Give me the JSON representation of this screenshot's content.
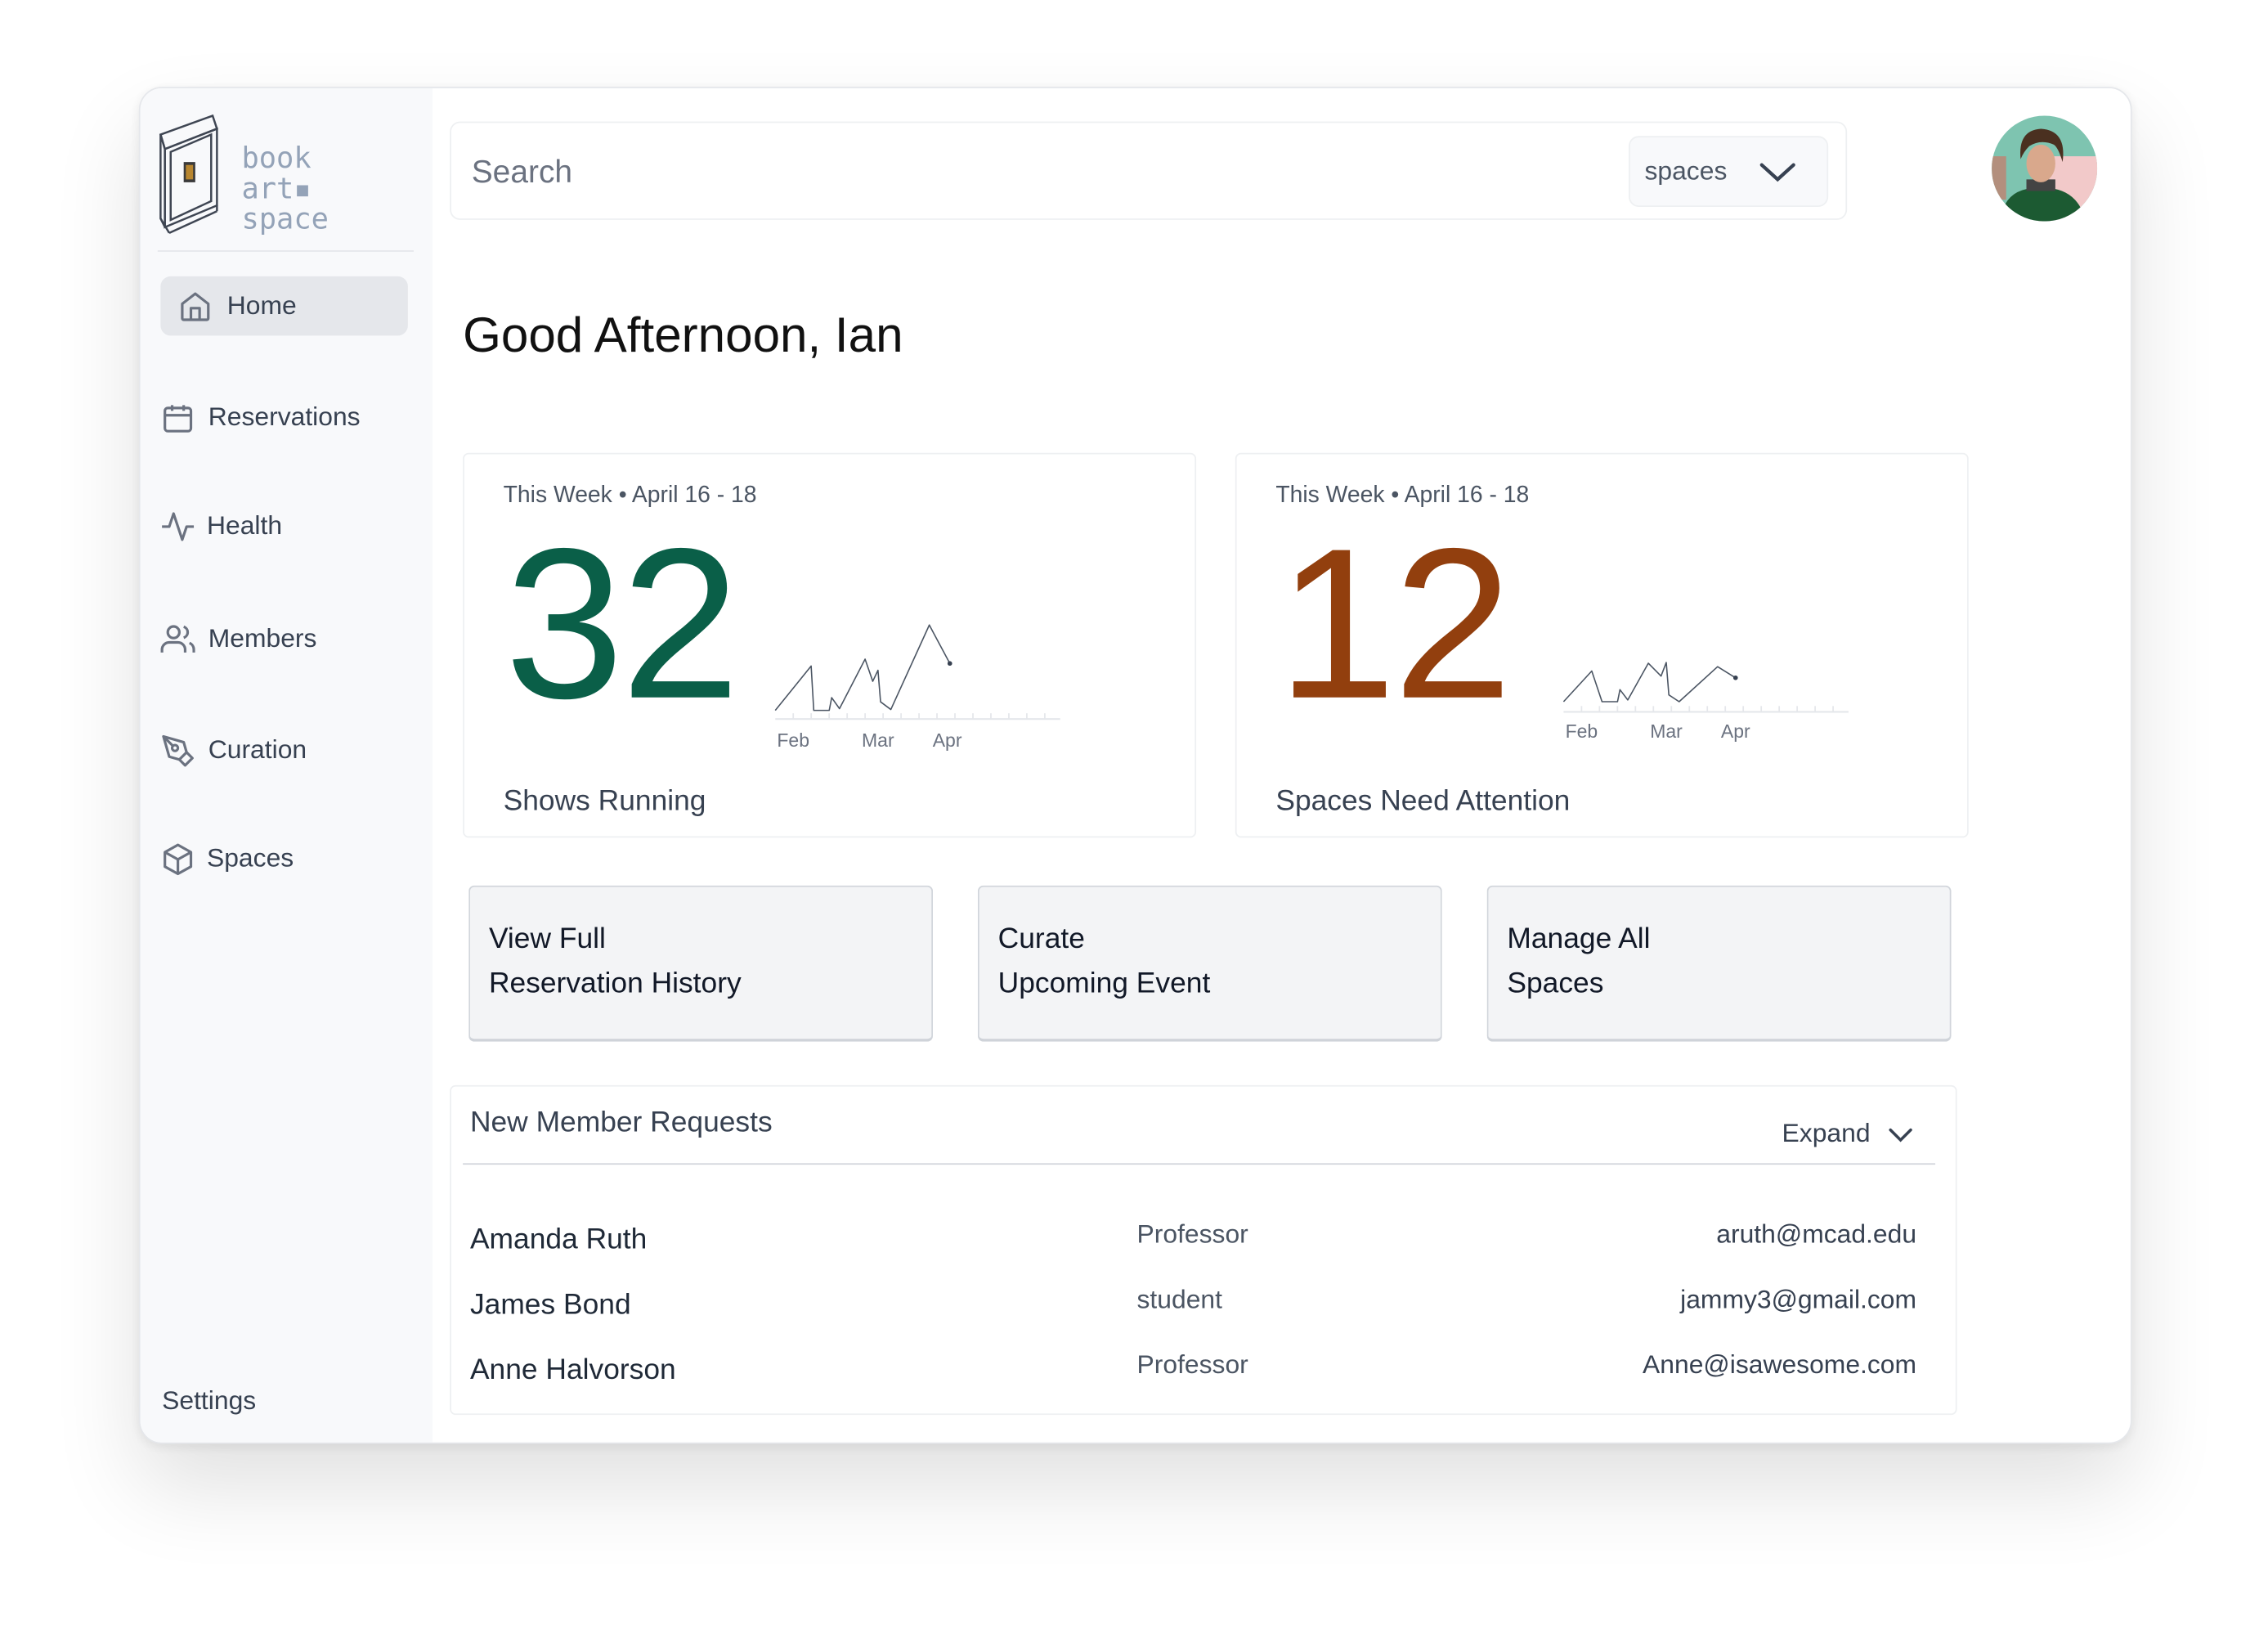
{
  "app": {
    "logo_text": [
      "book",
      "art▪",
      "space"
    ]
  },
  "sidebar": {
    "items": [
      {
        "label": "Home",
        "icon": "home-icon",
        "active": true
      },
      {
        "label": "Reservations",
        "icon": "calendar-icon"
      },
      {
        "label": "Health",
        "icon": "activity-icon"
      },
      {
        "label": "Members",
        "icon": "users-icon"
      },
      {
        "label": "Curation",
        "icon": "pen-tool-icon"
      },
      {
        "label": "Spaces",
        "icon": "box-icon"
      }
    ],
    "settings_label": "Settings"
  },
  "header": {
    "search_placeholder": "Search",
    "scope_value": "spaces"
  },
  "greeting": "Good Afternoon, Ian",
  "colors": {
    "shows": "#0a5f48",
    "attention": "#923f0e"
  },
  "stats": [
    {
      "period": "This Week • April 16 - 18",
      "value": "32",
      "label": "Shows Running"
    },
    {
      "period": "This Week • April 16 - 18",
      "value": "12",
      "label": "Spaces Need Attention"
    }
  ],
  "chart_data": [
    {
      "type": "line",
      "x_domain": [
        "01-25",
        "05-16"
      ],
      "month_labels": [
        {
          "date": "02-01",
          "label": "Feb"
        },
        {
          "date": "03-06",
          "label": "Mar"
        },
        {
          "date": "04-02",
          "label": "Apr"
        }
      ],
      "ylim": [
        0,
        10
      ],
      "points": [
        [
          "01-25",
          0
        ],
        [
          "02-08",
          5.2
        ],
        [
          "02-09",
          0
        ],
        [
          "02-15",
          0
        ],
        [
          "02-16",
          1.5
        ],
        [
          "02-19",
          0.2
        ],
        [
          "03-01",
          6
        ],
        [
          "03-04",
          3.4
        ],
        [
          "03-06",
          4.7
        ],
        [
          "03-07",
          1
        ],
        [
          "03-11",
          0.1
        ],
        [
          "03-26",
          10
        ],
        [
          "04-03",
          5.5
        ]
      ]
    },
    {
      "type": "line",
      "x_domain": [
        "01-25",
        "05-16"
      ],
      "month_labels": [
        {
          "date": "02-01",
          "label": "Feb"
        },
        {
          "date": "03-06",
          "label": "Mar"
        },
        {
          "date": "04-02",
          "label": "Apr"
        }
      ],
      "ylim": [
        0,
        10
      ],
      "points": [
        [
          "01-25",
          0
        ],
        [
          "02-05",
          3.6
        ],
        [
          "02-09",
          0
        ],
        [
          "02-15",
          0
        ],
        [
          "02-16",
          1.4
        ],
        [
          "02-19",
          0.2
        ],
        [
          "02-27",
          4.5
        ],
        [
          "03-04",
          3
        ],
        [
          "03-06",
          4.6
        ],
        [
          "03-07",
          0.8
        ],
        [
          "03-11",
          0
        ],
        [
          "03-26",
          4.1
        ],
        [
          "04-02",
          2.8
        ]
      ]
    }
  ],
  "actions": [
    {
      "lines": [
        "View Full",
        "Reservation History"
      ]
    },
    {
      "lines": [
        "Curate",
        "Upcoming Event"
      ]
    },
    {
      "lines": [
        "Manage All",
        "Spaces"
      ]
    }
  ],
  "requests": {
    "title": "New Member Requests",
    "expand_label": "Expand",
    "rows": [
      {
        "name": "Amanda Ruth",
        "role": "Professor",
        "email": "aruth@mcad.edu"
      },
      {
        "name": "James Bond",
        "role": "student",
        "email": "jammy3@gmail.com"
      },
      {
        "name": "Anne Halvorson",
        "role": "Professor",
        "email": "Anne@isawesome.com"
      }
    ]
  }
}
